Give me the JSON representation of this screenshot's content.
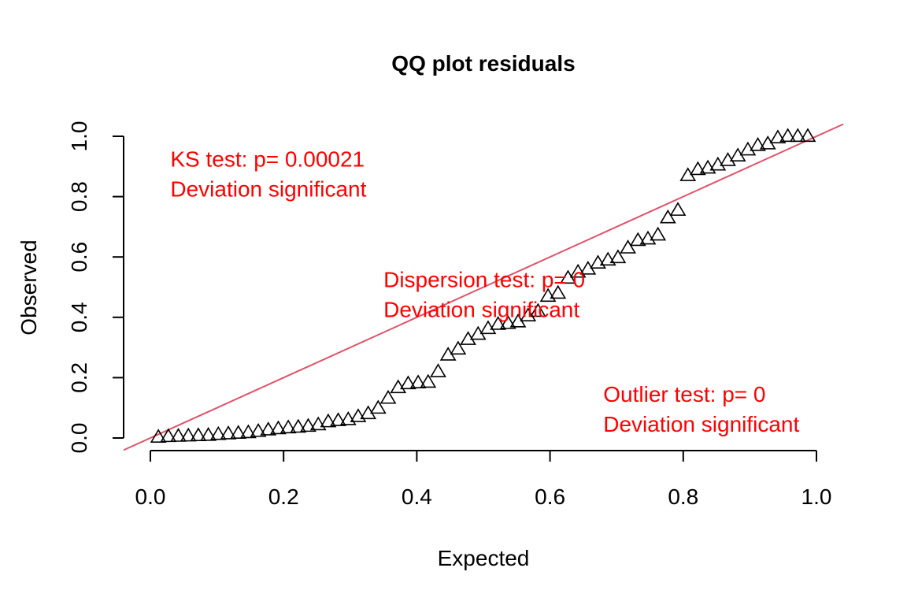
{
  "chart_data": {
    "type": "scatter",
    "title": "QQ plot residuals",
    "xlabel": "Expected",
    "ylabel": "Observed",
    "xlim": [
      0,
      1
    ],
    "ylim": [
      0,
      1
    ],
    "xticks": [
      "0.0",
      "0.2",
      "0.4",
      "0.6",
      "0.8",
      "1.0"
    ],
    "yticks": [
      "0.0",
      "0.2",
      "0.4",
      "0.6",
      "0.8",
      "1.0"
    ],
    "marker": "open-triangle",
    "reference_line": {
      "intercept": 0,
      "slope": 1
    },
    "colors": {
      "points": "#000000",
      "reference_line": "#DF536B",
      "annotations": "#FF0000"
    },
    "annotations": [
      {
        "lines": [
          "KS test: p= 0.00021",
          "Deviation  significant"
        ],
        "at": [
          0.03,
          0.9
        ]
      },
      {
        "lines": [
          "Dispersion test: p= 0",
          "Deviation  significant"
        ],
        "at": [
          0.35,
          0.5
        ]
      },
      {
        "lines": [
          "Outlier test: p= 0",
          "Deviation  significant"
        ],
        "at": [
          0.68,
          0.12
        ]
      }
    ],
    "x": [
      0.012,
      0.027,
      0.042,
      0.057,
      0.072,
      0.087,
      0.102,
      0.117,
      0.132,
      0.147,
      0.162,
      0.177,
      0.192,
      0.207,
      0.222,
      0.237,
      0.252,
      0.267,
      0.282,
      0.297,
      0.312,
      0.327,
      0.342,
      0.357,
      0.372,
      0.387,
      0.402,
      0.417,
      0.432,
      0.447,
      0.462,
      0.477,
      0.492,
      0.507,
      0.522,
      0.537,
      0.552,
      0.567,
      0.582,
      0.597,
      0.612,
      0.627,
      0.642,
      0.657,
      0.672,
      0.687,
      0.702,
      0.717,
      0.732,
      0.747,
      0.762,
      0.777,
      0.792,
      0.807,
      0.822,
      0.837,
      0.852,
      0.867,
      0.882,
      0.897,
      0.912,
      0.927,
      0.942,
      0.957,
      0.972,
      0.987
    ],
    "y": [
      0.003,
      0.005,
      0.006,
      0.007,
      0.008,
      0.009,
      0.012,
      0.014,
      0.016,
      0.018,
      0.022,
      0.027,
      0.031,
      0.034,
      0.036,
      0.039,
      0.044,
      0.054,
      0.058,
      0.061,
      0.071,
      0.081,
      0.099,
      0.132,
      0.167,
      0.18,
      0.183,
      0.185,
      0.22,
      0.275,
      0.295,
      0.327,
      0.344,
      0.363,
      0.377,
      0.38,
      0.385,
      0.405,
      0.42,
      0.47,
      0.48,
      0.53,
      0.55,
      0.56,
      0.58,
      0.59,
      0.598,
      0.63,
      0.655,
      0.66,
      0.673,
      0.73,
      0.755,
      0.87,
      0.89,
      0.895,
      0.905,
      0.92,
      0.935,
      0.955,
      0.97,
      0.975,
      0.995,
      1.0,
      1.0,
      1.0
    ]
  }
}
